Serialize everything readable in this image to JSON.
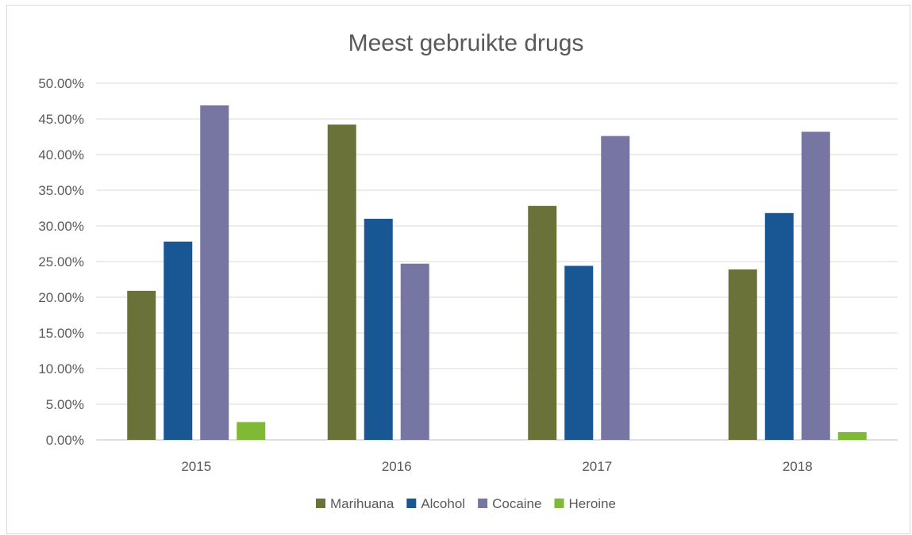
{
  "chart_data": {
    "type": "bar",
    "title": "Meest gebruikte drugs",
    "xlabel": "",
    "ylabel": "",
    "categories": [
      "2015",
      "2016",
      "2017",
      "2018"
    ],
    "series": [
      {
        "name": "Marihuana",
        "color": "#6a7139",
        "values": [
          20.9,
          44.2,
          32.8,
          23.9
        ]
      },
      {
        "name": "Alcohol",
        "color": "#185794",
        "values": [
          27.8,
          31.0,
          24.4,
          31.8
        ]
      },
      {
        "name": "Cocaine",
        "color": "#7776a2",
        "values": [
          46.9,
          24.7,
          42.6,
          43.2
        ]
      },
      {
        "name": "Heroine",
        "color": "#80b935",
        "values": [
          2.5,
          0,
          0,
          1.1
        ]
      }
    ],
    "ylim": [
      0,
      50
    ],
    "yticks": [
      "0.00%",
      "5.00%",
      "10.00%",
      "15.00%",
      "20.00%",
      "25.00%",
      "30.00%",
      "35.00%",
      "40.00%",
      "45.00%",
      "50.00%"
    ],
    "ytick_step": 5,
    "grid": true,
    "legend_position": "bottom"
  }
}
